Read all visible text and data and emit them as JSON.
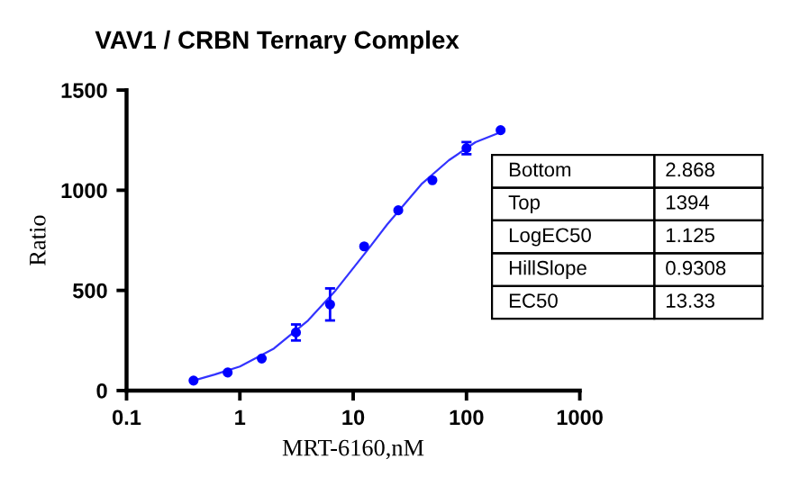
{
  "chart_data": {
    "type": "scatter",
    "title": "VAV1 / CRBN Ternary Complex",
    "xlabel": "MRT-6160,nM",
    "ylabel": "Ratio",
    "log": "x",
    "xlim": [
      0.1,
      1000
    ],
    "xticks": [
      0.1,
      1,
      10,
      100,
      1000
    ],
    "ylim": [
      0,
      1500
    ],
    "yticks": [
      0,
      500,
      1000,
      1500
    ],
    "grid": false,
    "marker": "circle",
    "series": [
      {
        "type": "scatter",
        "color": "#0000ff",
        "x": [
          0.39,
          0.78,
          1.56,
          3.125,
          6.25,
          12.5,
          25,
          50,
          100,
          200
        ],
        "values": [
          50,
          90,
          160,
          290,
          430,
          720,
          900,
          1050,
          1210,
          1300
        ],
        "errors": [
          null,
          null,
          null,
          40,
          80,
          null,
          null,
          null,
          30,
          null
        ]
      },
      {
        "type": "line",
        "color": "#3333ff",
        "marker": "none",
        "line_style": "solid",
        "x": [
          0.39,
          0.6,
          1,
          2,
          4,
          7,
          13.33,
          20,
          40,
          70,
          120,
          200
        ],
        "values": [
          50,
          80,
          120,
          210,
          350,
          500,
          700,
          830,
          1030,
          1150,
          1240,
          1290
        ]
      }
    ],
    "annotations": [
      "Bottom",
      "2.868",
      "Top",
      "1394",
      "LogEC50",
      "1.125",
      "HillSlope",
      "0.9308",
      "EC50",
      "13.33"
    ]
  }
}
